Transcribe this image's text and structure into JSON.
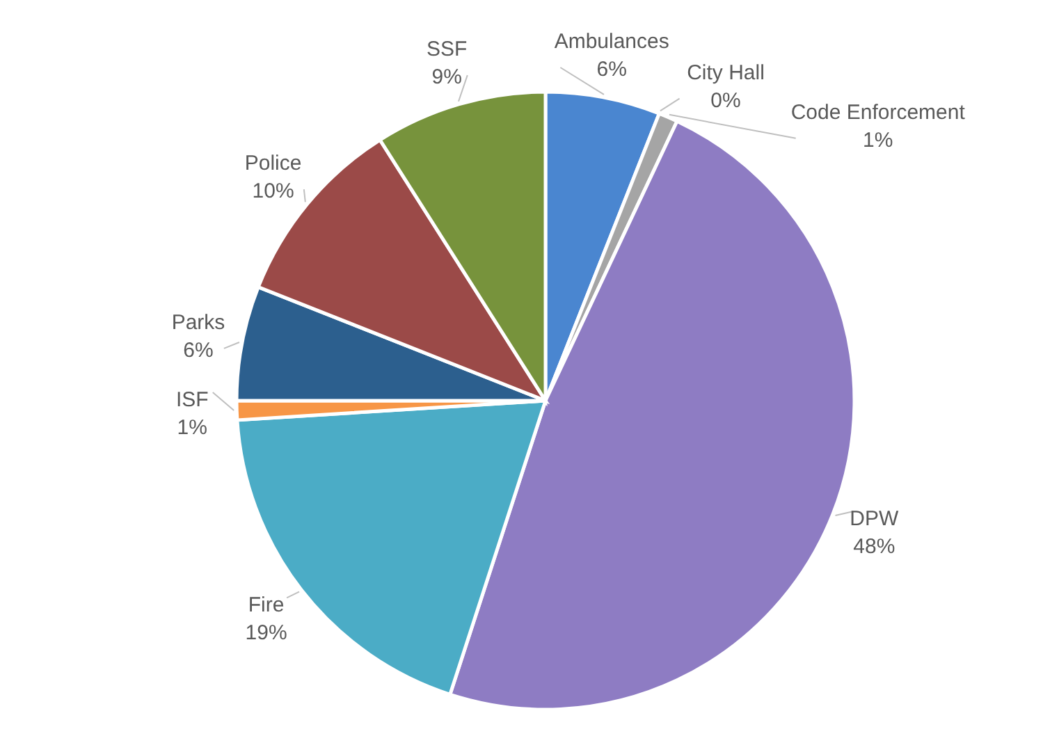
{
  "chart_data": {
    "type": "pie",
    "categories": [
      "Ambulances",
      "City Hall",
      "Code Enforcement",
      "DPW",
      "Fire",
      "ISF",
      "Parks",
      "Police",
      "SSF"
    ],
    "values": [
      6,
      0,
      1,
      48,
      19,
      1,
      6,
      10,
      9
    ],
    "value_labels": [
      "6%",
      "0%",
      "1%",
      "48%",
      "19%",
      "1%",
      "6%",
      "10%",
      "9%"
    ],
    "colors": [
      "#4a86d0",
      "#e07b39",
      "#a5a5a5",
      "#8e7cc3",
      "#4bacc6",
      "#f79646",
      "#2c5f8e",
      "#9b4a48",
      "#77933c"
    ]
  }
}
